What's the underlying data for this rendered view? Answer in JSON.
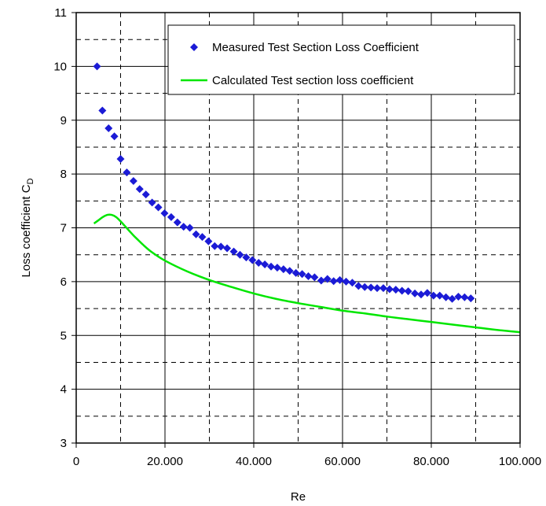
{
  "chart_data": {
    "type": "scatter",
    "xlabel": "Re",
    "ylabel_main": "Loss coefficient C",
    "ylabel_sub": "D",
    "xlim": [
      0,
      100000
    ],
    "ylim": [
      3,
      11
    ],
    "x_ticks": [
      {
        "value": 0,
        "label": "0"
      },
      {
        "value": 20000,
        "label": "20.000"
      },
      {
        "value": 40000,
        "label": "40.000"
      },
      {
        "value": 60000,
        "label": "60.000"
      },
      {
        "value": 80000,
        "label": "80.000"
      },
      {
        "value": 100000,
        "label": "100.000"
      }
    ],
    "y_ticks": [
      {
        "value": 3,
        "label": "3"
      },
      {
        "value": 4,
        "label": "4"
      },
      {
        "value": 5,
        "label": "5"
      },
      {
        "value": 6,
        "label": "6"
      },
      {
        "value": 7,
        "label": "7"
      },
      {
        "value": 8,
        "label": "8"
      },
      {
        "value": 9,
        "label": "9"
      },
      {
        "value": 10,
        "label": "10"
      },
      {
        "value": 11,
        "label": "11"
      }
    ],
    "grid": "major solid, minor dashed",
    "legend_position": "top-right",
    "series": [
      {
        "name": "Measured Test Section Loss Coefficient",
        "kind": "markers",
        "marker": "diamond",
        "color": "#1b1bd6",
        "x": [
          4700,
          5900,
          7300,
          8600,
          10000,
          11400,
          12900,
          14300,
          15700,
          17100,
          18500,
          19900,
          21400,
          22800,
          24200,
          25600,
          27000,
          28400,
          29800,
          31200,
          32600,
          34000,
          35500,
          36900,
          38300,
          39700,
          41100,
          42500,
          43900,
          45300,
          46700,
          48100,
          49500,
          50900,
          52300,
          53700,
          55200,
          56600,
          58000,
          59400,
          60800,
          62200,
          63600,
          65000,
          66400,
          67800,
          69200,
          70600,
          72000,
          73400,
          74800,
          76300,
          77700,
          79100,
          80500,
          81900,
          83300,
          84700,
          86100,
          87500,
          88900
        ],
        "y": [
          10.0,
          9.18,
          8.85,
          8.7,
          8.28,
          8.03,
          7.87,
          7.72,
          7.62,
          7.47,
          7.38,
          7.27,
          7.2,
          7.1,
          7.02,
          7.0,
          6.88,
          6.83,
          6.75,
          6.66,
          6.65,
          6.62,
          6.56,
          6.5,
          6.45,
          6.4,
          6.35,
          6.32,
          6.28,
          6.26,
          6.23,
          6.2,
          6.16,
          6.14,
          6.1,
          6.08,
          6.02,
          6.05,
          6.01,
          6.03,
          6.0,
          5.98,
          5.92,
          5.9,
          5.89,
          5.88,
          5.88,
          5.86,
          5.85,
          5.83,
          5.82,
          5.78,
          5.76,
          5.79,
          5.74,
          5.74,
          5.71,
          5.68,
          5.72,
          5.71,
          5.69
        ]
      },
      {
        "name": "Calculated Test section loss coefficient",
        "kind": "line",
        "color": "#00e600",
        "x": [
          4000,
          5000,
          6000,
          7000,
          8000,
          9000,
          10000,
          11000,
          12000,
          13000,
          14000,
          15000,
          17000,
          20000,
          25000,
          30000,
          35000,
          40000,
          45000,
          50000,
          55000,
          60000,
          65000,
          70000,
          75000,
          80000,
          85000,
          90000,
          95000,
          100000
        ],
        "y": [
          7.08,
          7.14,
          7.2,
          7.24,
          7.24,
          7.2,
          7.12,
          7.03,
          6.94,
          6.85,
          6.77,
          6.69,
          6.55,
          6.39,
          6.19,
          6.03,
          5.9,
          5.78,
          5.68,
          5.6,
          5.53,
          5.46,
          5.41,
          5.35,
          5.3,
          5.25,
          5.2,
          5.15,
          5.1,
          5.06
        ]
      }
    ]
  }
}
